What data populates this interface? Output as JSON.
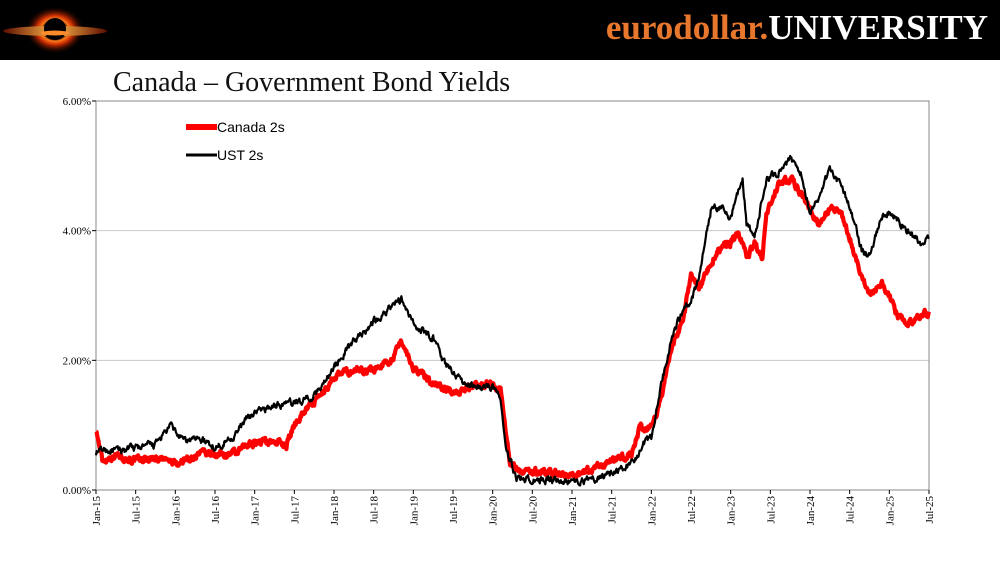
{
  "header": {
    "brand_part1": "eurodollar.",
    "brand_part2": "UNIVERSITY",
    "logo_icon": "black-hole-logo-icon",
    "background": "#000000",
    "accent": "#e8772e"
  },
  "chart_data": {
    "type": "line",
    "title": "Canada – Government Bond Yields",
    "xlabel": "",
    "ylabel": "",
    "ylim": [
      0,
      6
    ],
    "yticks": [
      "0.00%",
      "2.00%",
      "4.00%",
      "6.00%"
    ],
    "xlim": [
      2015.0,
      2025.5
    ],
    "xticks": [
      "Jan-15",
      "Jul-15",
      "Jan-16",
      "Jul-16",
      "Jan-17",
      "Jul-17",
      "Jan-18",
      "Jul-18",
      "Jan-19",
      "Jul-19",
      "Jan-20",
      "Jul-20",
      "Jan-21",
      "Jul-21",
      "Jan-22",
      "Jul-22",
      "Jan-23",
      "Jul-23",
      "Jan-24",
      "Jul-24",
      "Jan-25",
      "Jul-25"
    ],
    "grid": true,
    "legend_position": "top-left",
    "series": [
      {
        "name": "Canada 2s",
        "color": "#ff0000",
        "points": [
          [
            2015.0,
            0.95
          ],
          [
            2015.08,
            0.45
          ],
          [
            2015.25,
            0.55
          ],
          [
            2015.5,
            0.45
          ],
          [
            2015.75,
            0.5
          ],
          [
            2015.9,
            0.45
          ],
          [
            2016.0,
            0.4
          ],
          [
            2016.1,
            0.45
          ],
          [
            2016.3,
            0.55
          ],
          [
            2016.5,
            0.55
          ],
          [
            2016.75,
            0.55
          ],
          [
            2017.0,
            0.75
          ],
          [
            2017.25,
            0.75
          ],
          [
            2017.4,
            0.7
          ],
          [
            2017.5,
            1.0
          ],
          [
            2017.6,
            1.2
          ],
          [
            2017.75,
            1.35
          ],
          [
            2017.9,
            1.55
          ],
          [
            2018.0,
            1.75
          ],
          [
            2018.25,
            1.85
          ],
          [
            2018.5,
            1.85
          ],
          [
            2018.75,
            2.05
          ],
          [
            2018.85,
            2.3
          ],
          [
            2019.0,
            1.9
          ],
          [
            2019.25,
            1.65
          ],
          [
            2019.5,
            1.5
          ],
          [
            2019.75,
            1.6
          ],
          [
            2020.0,
            1.65
          ],
          [
            2020.1,
            1.55
          ],
          [
            2020.15,
            1.1
          ],
          [
            2020.22,
            0.4
          ],
          [
            2020.35,
            0.3
          ],
          [
            2020.6,
            0.28
          ],
          [
            2020.9,
            0.25
          ],
          [
            2021.0,
            0.22
          ],
          [
            2021.25,
            0.3
          ],
          [
            2021.5,
            0.45
          ],
          [
            2021.75,
            0.55
          ],
          [
            2021.85,
            0.95
          ],
          [
            2022.0,
            0.95
          ],
          [
            2022.1,
            1.3
          ],
          [
            2022.25,
            2.2
          ],
          [
            2022.4,
            2.6
          ],
          [
            2022.5,
            3.3
          ],
          [
            2022.6,
            3.1
          ],
          [
            2022.75,
            3.5
          ],
          [
            2022.9,
            3.8
          ],
          [
            2023.0,
            3.8
          ],
          [
            2023.1,
            4.0
          ],
          [
            2023.2,
            3.6
          ],
          [
            2023.3,
            3.8
          ],
          [
            2023.4,
            3.5
          ],
          [
            2023.45,
            4.3
          ],
          [
            2023.6,
            4.7
          ],
          [
            2023.75,
            4.8
          ],
          [
            2023.85,
            4.65
          ],
          [
            2024.0,
            4.35
          ],
          [
            2024.1,
            4.1
          ],
          [
            2024.25,
            4.35
          ],
          [
            2024.4,
            4.25
          ],
          [
            2024.5,
            3.9
          ],
          [
            2024.6,
            3.5
          ],
          [
            2024.75,
            3.0
          ],
          [
            2024.9,
            3.2
          ],
          [
            2025.0,
            3.0
          ],
          [
            2025.1,
            2.7
          ],
          [
            2025.25,
            2.55
          ],
          [
            2025.4,
            2.65
          ],
          [
            2025.5,
            2.75
          ]
        ]
      },
      {
        "name": "UST 2s",
        "color": "#000000",
        "points": [
          [
            2015.0,
            0.58
          ],
          [
            2015.1,
            0.62
          ],
          [
            2015.25,
            0.6
          ],
          [
            2015.5,
            0.65
          ],
          [
            2015.75,
            0.7
          ],
          [
            2015.95,
            1.0
          ],
          [
            2016.0,
            0.9
          ],
          [
            2016.1,
            0.75
          ],
          [
            2016.3,
            0.8
          ],
          [
            2016.5,
            0.65
          ],
          [
            2016.75,
            0.85
          ],
          [
            2016.9,
            1.1
          ],
          [
            2017.0,
            1.2
          ],
          [
            2017.25,
            1.3
          ],
          [
            2017.5,
            1.35
          ],
          [
            2017.75,
            1.45
          ],
          [
            2018.0,
            1.9
          ],
          [
            2018.25,
            2.3
          ],
          [
            2018.5,
            2.6
          ],
          [
            2018.75,
            2.85
          ],
          [
            2018.85,
            2.95
          ],
          [
            2019.0,
            2.55
          ],
          [
            2019.25,
            2.35
          ],
          [
            2019.4,
            1.95
          ],
          [
            2019.6,
            1.7
          ],
          [
            2019.75,
            1.6
          ],
          [
            2020.0,
            1.6
          ],
          [
            2020.1,
            1.4
          ],
          [
            2020.18,
            0.6
          ],
          [
            2020.3,
            0.2
          ],
          [
            2020.5,
            0.16
          ],
          [
            2020.75,
            0.15
          ],
          [
            2021.0,
            0.13
          ],
          [
            2021.25,
            0.16
          ],
          [
            2021.5,
            0.25
          ],
          [
            2021.75,
            0.4
          ],
          [
            2021.9,
            0.7
          ],
          [
            2022.0,
            0.8
          ],
          [
            2022.1,
            1.5
          ],
          [
            2022.25,
            2.3
          ],
          [
            2022.4,
            2.8
          ],
          [
            2022.5,
            2.9
          ],
          [
            2022.6,
            3.3
          ],
          [
            2022.75,
            4.3
          ],
          [
            2022.9,
            4.4
          ],
          [
            2023.0,
            4.2
          ],
          [
            2023.15,
            4.8
          ],
          [
            2023.2,
            4.1
          ],
          [
            2023.3,
            3.9
          ],
          [
            2023.45,
            4.8
          ],
          [
            2023.6,
            4.9
          ],
          [
            2023.75,
            5.1
          ],
          [
            2023.9,
            4.85
          ],
          [
            2024.0,
            4.3
          ],
          [
            2024.1,
            4.5
          ],
          [
            2024.25,
            4.95
          ],
          [
            2024.4,
            4.7
          ],
          [
            2024.55,
            4.2
          ],
          [
            2024.65,
            3.7
          ],
          [
            2024.75,
            3.6
          ],
          [
            2024.9,
            4.2
          ],
          [
            2025.0,
            4.3
          ],
          [
            2025.15,
            4.1
          ],
          [
            2025.3,
            3.9
          ],
          [
            2025.4,
            3.8
          ],
          [
            2025.5,
            3.9
          ]
        ]
      }
    ]
  }
}
